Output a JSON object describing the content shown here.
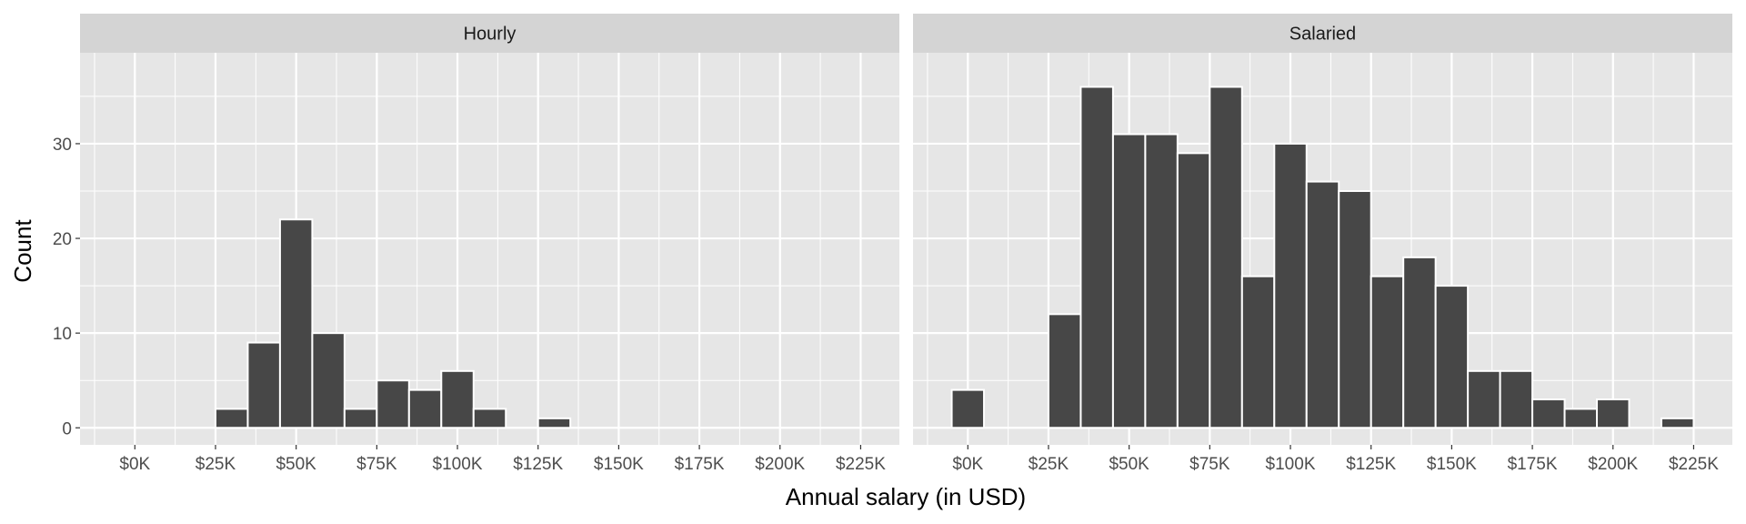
{
  "chart_data": {
    "type": "bar",
    "xlabel": "Annual salary (in USD)",
    "ylabel": "Count",
    "xlim": [
      -17000,
      237000
    ],
    "ylim": [
      -1.8,
      39.6
    ],
    "bin_width": 10000,
    "x_ticks": [
      0,
      25000,
      50000,
      75000,
      100000,
      125000,
      150000,
      175000,
      200000,
      225000
    ],
    "x_tick_labels": [
      "$0K",
      "$25K",
      "$50K",
      "$75K",
      "$100K",
      "$125K",
      "$150K",
      "$175K",
      "$200K",
      "$225K"
    ],
    "y_ticks": [
      0,
      10,
      20,
      30
    ],
    "y_tick_labels": [
      "0",
      "10",
      "20",
      "30"
    ],
    "grid": true,
    "colors": {
      "bar_fill": "#474747",
      "bar_stroke": "#ffffff",
      "panel_bg": "#e6e6e6",
      "strip_bg": "#d4d4d4",
      "grid": "#ffffff"
    },
    "panels": [
      {
        "name": "Hourly",
        "bins": [
          {
            "x": 30000,
            "count": 2
          },
          {
            "x": 40000,
            "count": 9
          },
          {
            "x": 50000,
            "count": 22
          },
          {
            "x": 60000,
            "count": 10
          },
          {
            "x": 70000,
            "count": 2
          },
          {
            "x": 80000,
            "count": 5
          },
          {
            "x": 90000,
            "count": 4
          },
          {
            "x": 100000,
            "count": 6
          },
          {
            "x": 110000,
            "count": 2
          },
          {
            "x": 130000,
            "count": 1
          }
        ]
      },
      {
        "name": "Salaried",
        "bins": [
          {
            "x": 0,
            "count": 4
          },
          {
            "x": 30000,
            "count": 12
          },
          {
            "x": 40000,
            "count": 36
          },
          {
            "x": 50000,
            "count": 31
          },
          {
            "x": 60000,
            "count": 31
          },
          {
            "x": 70000,
            "count": 29
          },
          {
            "x": 80000,
            "count": 36
          },
          {
            "x": 90000,
            "count": 16
          },
          {
            "x": 100000,
            "count": 30
          },
          {
            "x": 110000,
            "count": 26
          },
          {
            "x": 120000,
            "count": 25
          },
          {
            "x": 130000,
            "count": 16
          },
          {
            "x": 140000,
            "count": 18
          },
          {
            "x": 150000,
            "count": 15
          },
          {
            "x": 160000,
            "count": 6
          },
          {
            "x": 170000,
            "count": 6
          },
          {
            "x": 180000,
            "count": 3
          },
          {
            "x": 190000,
            "count": 2
          },
          {
            "x": 200000,
            "count": 3
          },
          {
            "x": 220000,
            "count": 1
          }
        ]
      }
    ]
  }
}
